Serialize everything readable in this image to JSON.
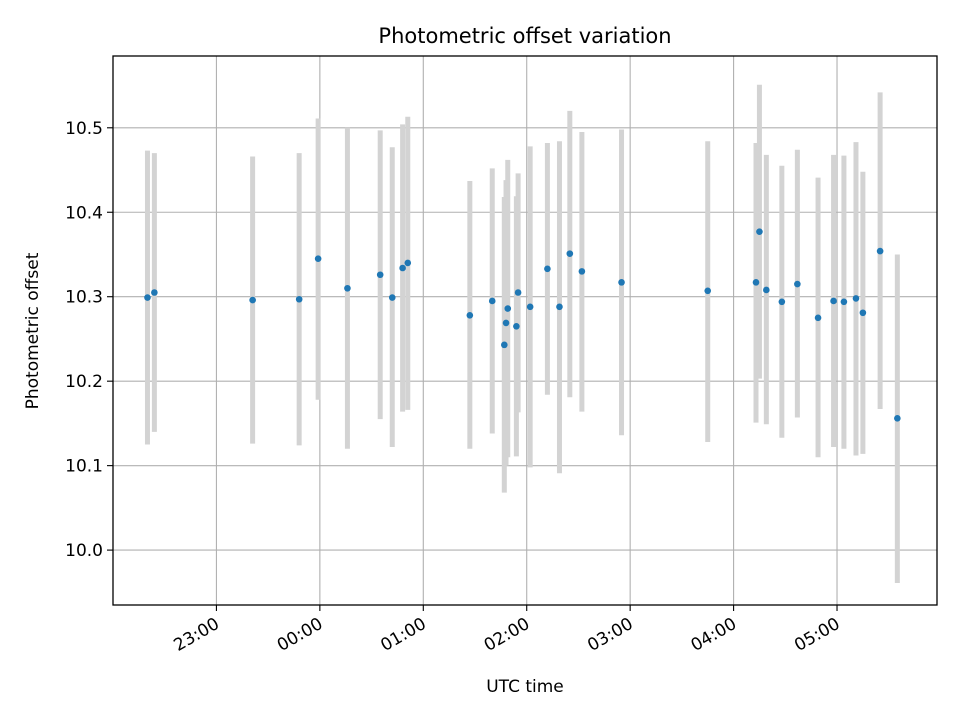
{
  "chart_data": {
    "type": "scatter",
    "title": "Photometric offset variation",
    "xlabel": "UTC time",
    "ylabel": "Photometric offset",
    "grid": true,
    "x_axis_kind": "time (HH:MM, minutes after 22:00 UTC mapped on a continuous clock; entries past 24:00 are next day)",
    "xlim": [
      "22:00",
      "05:58"
    ],
    "ylim": [
      9.935,
      10.585
    ],
    "x_ticks": [
      "23:00",
      "00:00",
      "01:00",
      "02:00",
      "03:00",
      "04:00",
      "05:00"
    ],
    "y_ticks": [
      10.0,
      10.1,
      10.2,
      10.3,
      10.4,
      10.5
    ],
    "y_tick_labels": [
      "10.0",
      "10.1",
      "10.2",
      "10.3",
      "10.4",
      "10.5"
    ],
    "colors": {
      "marker": "#1f77b4",
      "errorbar": "#d3d3d3",
      "grid": "#b0b0b0"
    },
    "points": [
      {
        "x": "22:20",
        "y": 10.299,
        "lo": 10.125,
        "hi": 10.473
      },
      {
        "x": "22:24",
        "y": 10.305,
        "lo": 10.14,
        "hi": 10.47
      },
      {
        "x": "23:21",
        "y": 10.296,
        "lo": 10.126,
        "hi": 10.466
      },
      {
        "x": "23:48",
        "y": 10.297,
        "lo": 10.124,
        "hi": 10.47
      },
      {
        "x": "23:59",
        "y": 10.345,
        "lo": 10.178,
        "hi": 10.511
      },
      {
        "x": "00:16",
        "y": 10.31,
        "lo": 10.12,
        "hi": 10.5
      },
      {
        "x": "00:35",
        "y": 10.326,
        "lo": 10.155,
        "hi": 10.497
      },
      {
        "x": "00:42",
        "y": 10.299,
        "lo": 10.122,
        "hi": 10.477
      },
      {
        "x": "00:48",
        "y": 10.334,
        "lo": 10.164,
        "hi": 10.504
      },
      {
        "x": "00:51",
        "y": 10.34,
        "lo": 10.166,
        "hi": 10.513
      },
      {
        "x": "01:27",
        "y": 10.278,
        "lo": 10.12,
        "hi": 10.437
      },
      {
        "x": "01:40",
        "y": 10.295,
        "lo": 10.138,
        "hi": 10.452
      },
      {
        "x": "01:47",
        "y": 10.243,
        "lo": 10.068,
        "hi": 10.418
      },
      {
        "x": "01:48",
        "y": 10.269,
        "lo": 10.1,
        "hi": 10.438
      },
      {
        "x": "01:49",
        "y": 10.286,
        "lo": 10.11,
        "hi": 10.462
      },
      {
        "x": "01:54",
        "y": 10.265,
        "lo": 10.111,
        "hi": 10.419
      },
      {
        "x": "01:55",
        "y": 10.305,
        "lo": 10.163,
        "hi": 10.446
      },
      {
        "x": "02:02",
        "y": 10.288,
        "lo": 10.098,
        "hi": 10.478
      },
      {
        "x": "02:12",
        "y": 10.333,
        "lo": 10.184,
        "hi": 10.482
      },
      {
        "x": "02:19",
        "y": 10.288,
        "lo": 10.091,
        "hi": 10.484
      },
      {
        "x": "02:25",
        "y": 10.351,
        "lo": 10.181,
        "hi": 10.52
      },
      {
        "x": "02:32",
        "y": 10.33,
        "lo": 10.164,
        "hi": 10.495
      },
      {
        "x": "02:55",
        "y": 10.317,
        "lo": 10.136,
        "hi": 10.498
      },
      {
        "x": "03:45",
        "y": 10.307,
        "lo": 10.128,
        "hi": 10.484
      },
      {
        "x": "04:13",
        "y": 10.317,
        "lo": 10.151,
        "hi": 10.482
      },
      {
        "x": "04:15",
        "y": 10.377,
        "lo": 10.203,
        "hi": 10.551
      },
      {
        "x": "04:19",
        "y": 10.308,
        "lo": 10.149,
        "hi": 10.468
      },
      {
        "x": "04:28",
        "y": 10.294,
        "lo": 10.133,
        "hi": 10.455
      },
      {
        "x": "04:37",
        "y": 10.315,
        "lo": 10.157,
        "hi": 10.474
      },
      {
        "x": "04:49",
        "y": 10.275,
        "lo": 10.11,
        "hi": 10.441
      },
      {
        "x": "04:58",
        "y": 10.295,
        "lo": 10.122,
        "hi": 10.468
      },
      {
        "x": "05:04",
        "y": 10.294,
        "lo": 10.12,
        "hi": 10.467
      },
      {
        "x": "05:11",
        "y": 10.298,
        "lo": 10.112,
        "hi": 10.483
      },
      {
        "x": "05:15",
        "y": 10.281,
        "lo": 10.114,
        "hi": 10.448
      },
      {
        "x": "05:25",
        "y": 10.354,
        "lo": 10.167,
        "hi": 10.542
      },
      {
        "x": "05:35",
        "y": 10.156,
        "lo": 9.961,
        "hi": 10.35
      }
    ]
  }
}
